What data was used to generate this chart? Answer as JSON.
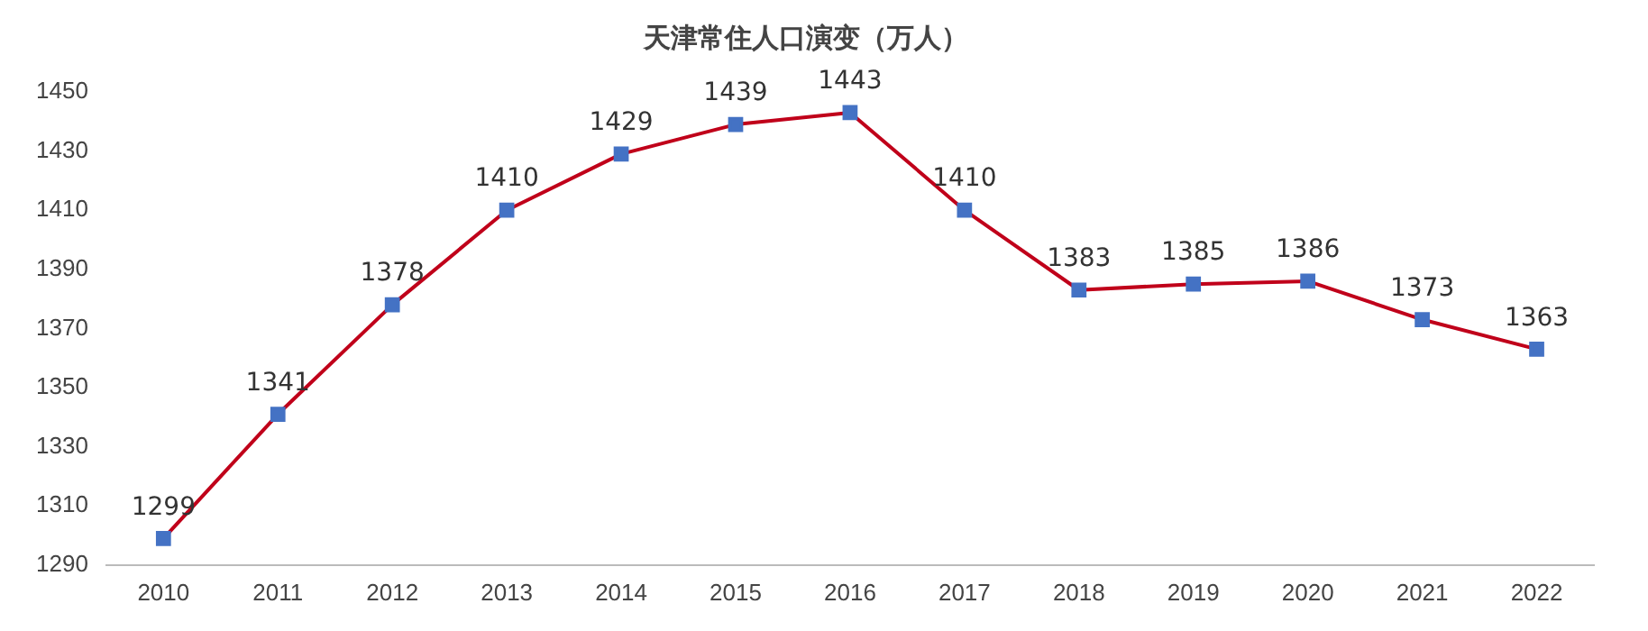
{
  "chart_data": {
    "type": "line",
    "title": "天津常住人口演变（万人）",
    "categories": [
      "2010",
      "2011",
      "2012",
      "2013",
      "2014",
      "2015",
      "2016",
      "2017",
      "2018",
      "2019",
      "2020",
      "2021",
      "2022"
    ],
    "series": [
      {
        "color": "#c0001a",
        "colors": [
          "#4472c4",
          "#4472c4",
          "#4472c4",
          "#4472c4",
          "#4472c4",
          "#4472c4",
          "#4472c4",
          "#4472c4",
          "#4472c4",
          "#4472c4",
          "#4472c4",
          "#4472c4",
          "#4472c4"
        ],
        "values": [
          1299,
          1341,
          1378,
          1410,
          1429,
          1439,
          1443,
          1410,
          1383,
          1385,
          1386,
          1373,
          1363
        ]
      }
    ],
    "marker": "square",
    "line_style": "solid",
    "ylim": [
      1290,
      1450
    ],
    "yticks": [
      1290,
      1310,
      1330,
      1350,
      1370,
      1390,
      1410,
      1430,
      1450
    ],
    "grid": false,
    "legend": false,
    "data_labels": true
  }
}
